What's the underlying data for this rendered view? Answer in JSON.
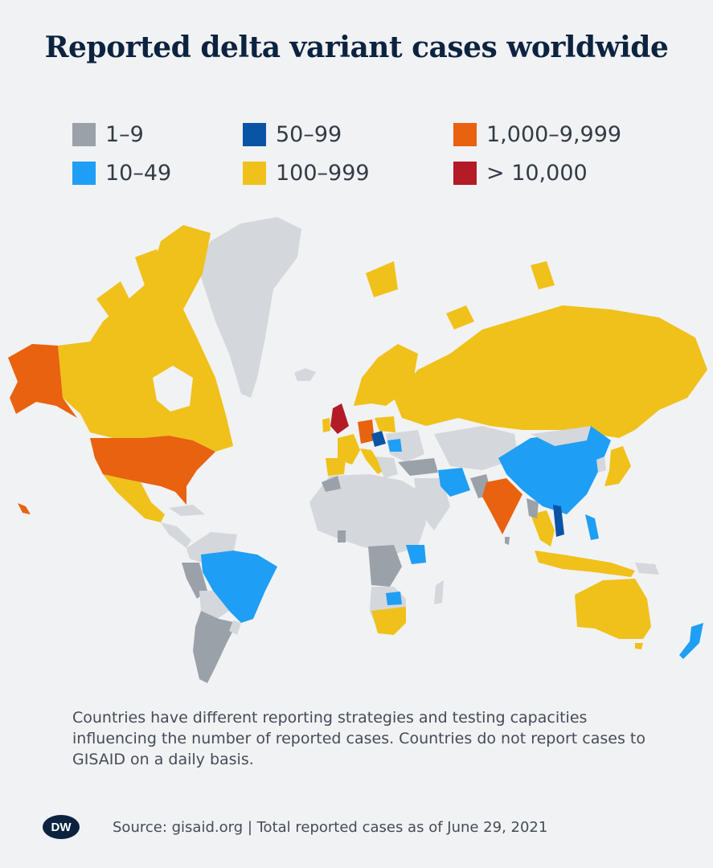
{
  "title": "Reported delta variant cases worldwide",
  "legend": [
    {
      "label": "1–9",
      "color": "#9aa1a9"
    },
    {
      "label": "10–49",
      "color": "#1f9ef5"
    },
    {
      "label": "50–99",
      "color": "#0a54a6"
    },
    {
      "label": "100–999",
      "color": "#efc11a"
    },
    {
      "label": "1,000–9,999",
      "color": "#e8620f"
    },
    {
      "label": "> 10,000",
      "color": "#b31c26"
    }
  ],
  "no_data_color": "#d4d7db",
  "note": "Countries have different reporting strategies and testing capacities influencing the number of reported cases. Countries do not report cases to GISAID on a daily basis.",
  "logo": "DW",
  "source": "Source: gisaid.org | Total reported cases as of June 29, 2021"
}
